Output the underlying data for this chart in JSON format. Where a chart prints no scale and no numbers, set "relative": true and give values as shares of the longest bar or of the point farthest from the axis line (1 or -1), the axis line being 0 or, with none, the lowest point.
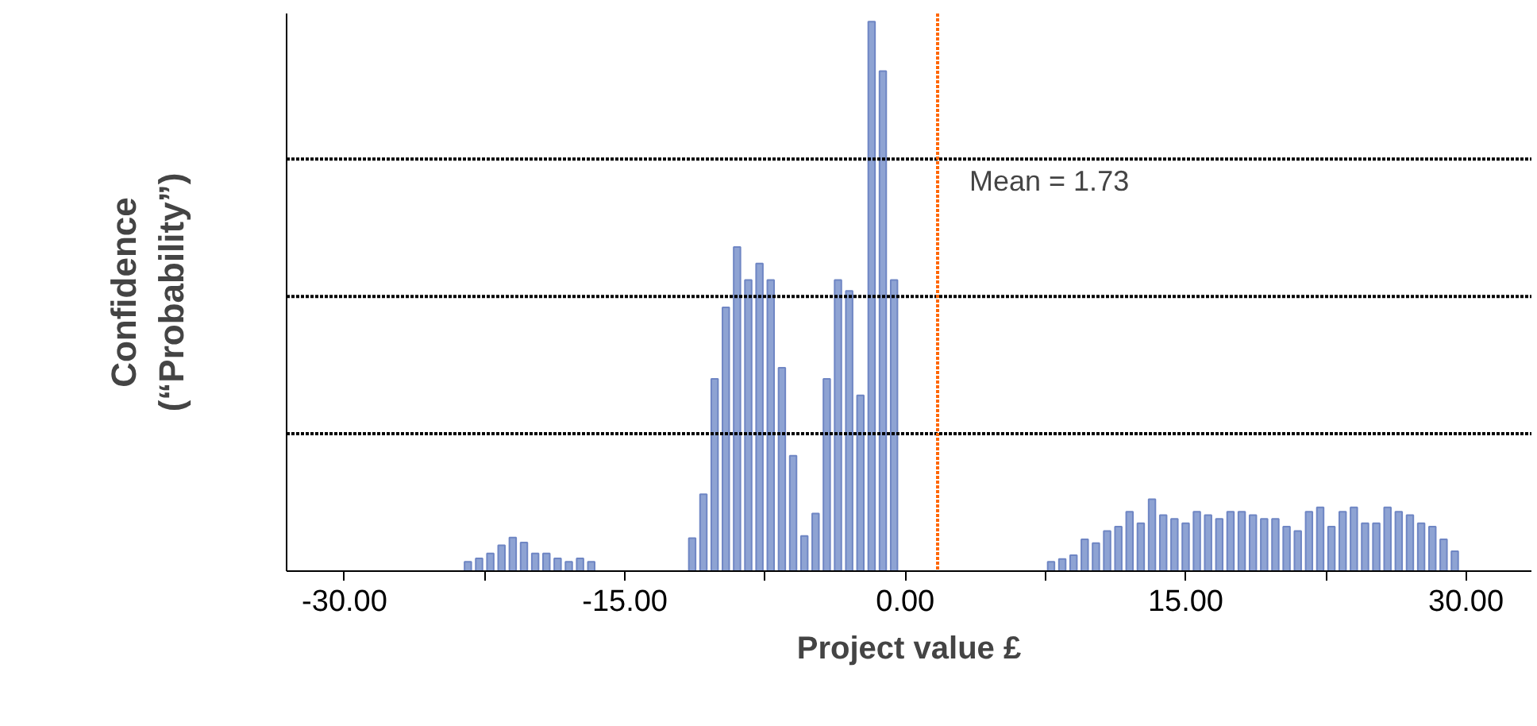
{
  "chart_data": {
    "type": "bar",
    "relative": true,
    "xlabel": "Project value £",
    "ylabel": "Confidence\n(“Probability”)",
    "color": "#8ea3d3",
    "x": [
      -23.4,
      -22.8,
      -22.2,
      -21.6,
      -21.0,
      -20.4,
      -19.8,
      -19.2,
      -18.6,
      -18.0,
      -17.4,
      -16.8,
      -11.4,
      -10.8,
      -10.2,
      -9.6,
      -9.0,
      -8.4,
      -7.8,
      -7.2,
      -6.6,
      -6.0,
      -5.4,
      -4.8,
      -4.2,
      -3.6,
      -3.0,
      -2.4,
      -1.8,
      -1.2,
      -0.6,
      7.8,
      8.4,
      9.0,
      9.6,
      10.2,
      10.8,
      11.4,
      12.0,
      12.6,
      13.2,
      13.8,
      14.4,
      15.0,
      15.6,
      16.2,
      16.8,
      17.4,
      18.0,
      18.6,
      19.2,
      19.8,
      20.4,
      21.0,
      21.6,
      22.2,
      22.8,
      23.4,
      24.0,
      24.6,
      25.2,
      25.8,
      26.4,
      27.0,
      27.6,
      28.2,
      28.8,
      29.4
    ],
    "values": [
      0.017,
      0.023,
      0.032,
      0.047,
      0.061,
      0.052,
      0.032,
      0.032,
      0.023,
      0.017,
      0.023,
      0.017,
      0.06,
      0.14,
      0.35,
      0.48,
      0.59,
      0.53,
      0.56,
      0.53,
      0.37,
      0.21,
      0.064,
      0.105,
      0.35,
      0.53,
      0.51,
      0.32,
      1,
      0.91,
      0.53,
      0.017,
      0.022,
      0.029,
      0.058,
      0.051,
      0.073,
      0.081,
      0.108,
      0.087,
      0.131,
      0.102,
      0.095,
      0.087,
      0.108,
      0.102,
      0.095,
      0.108,
      0.108,
      0.102,
      0.095,
      0.095,
      0.081,
      0.073,
      0.108,
      0.116,
      0.081,
      0.108,
      0.116,
      0.087,
      0.087,
      0.116,
      0.108,
      0.102,
      0.087,
      0.081,
      0.058,
      0.036
    ],
    "xlim": [
      -33.1,
      33.5
    ],
    "xticks": [
      {
        "value": -30,
        "label": "-30.00"
      },
      {
        "value": -22.5,
        "label": null
      },
      {
        "value": -15,
        "label": "-15.00"
      },
      {
        "value": -7.5,
        "label": null
      },
      {
        "value": 0,
        "label": "0.00"
      },
      {
        "value": 7.5,
        "label": null
      },
      {
        "value": 15,
        "label": "15.00"
      },
      {
        "value": 22.5,
        "label": null
      },
      {
        "value": 30,
        "label": "30.00"
      }
    ],
    "tick_labels": "x",
    "ref_lines": [
      {
        "axis": "y",
        "value": 0.25,
        "color": "#000000",
        "line_style": "dotted"
      },
      {
        "axis": "y",
        "value": 0.5,
        "color": "#000000",
        "line_style": "dotted"
      },
      {
        "axis": "y",
        "value": 0.75,
        "color": "#000000",
        "line_style": "dotted"
      },
      {
        "axis": "x",
        "value": 1.73,
        "label": "Mean = 1.73",
        "color": "#ff6600",
        "line_style": "dotted"
      }
    ]
  }
}
